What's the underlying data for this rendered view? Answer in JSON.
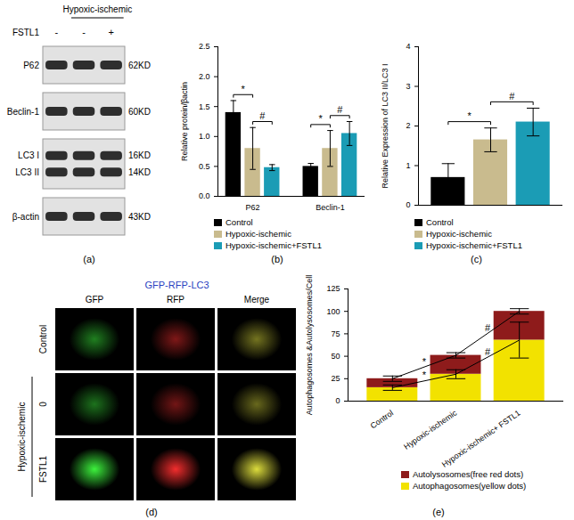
{
  "chart_data": [
    {
      "type": "blot",
      "caption": "(a)",
      "group_label": "Hypoxic-ischemic",
      "treatment": "FSTL1",
      "lanes": [
        "-",
        "-",
        "+"
      ],
      "bands": [
        {
          "names": [
            "P62"
          ],
          "size_labels": [
            "62KD"
          ]
        },
        {
          "names": [
            "Beclin-1"
          ],
          "size_labels": [
            "60KD"
          ]
        },
        {
          "names": [
            "LC3 I",
            "LC3 II"
          ],
          "size_labels": [
            "16KD",
            "14KD"
          ]
        },
        {
          "names": [
            "β-actin"
          ],
          "size_labels": [
            "43KD"
          ]
        }
      ]
    },
    {
      "type": "bar",
      "caption": "(b)",
      "y_label": "Relative protein/βactin",
      "categories": [
        "P62",
        "Beclin-1"
      ],
      "series": [
        {
          "name": "Control",
          "color": "#000000",
          "values": [
            1.4,
            0.5
          ],
          "errors": [
            0.2,
            0.05
          ]
        },
        {
          "name": "Hypoxic-ischemic",
          "color": "#c9bb8e",
          "values": [
            0.8,
            0.8
          ],
          "errors": [
            0.35,
            0.3
          ]
        },
        {
          "name": "Hypoxic-ischemic+FSTL1",
          "color": "#1b9cb5",
          "values": [
            0.48,
            1.05
          ],
          "errors": [
            0.05,
            0.2
          ]
        }
      ],
      "ylim": [
        0,
        2.5
      ],
      "yticks": [
        {
          "value": 0,
          "label": "0.0"
        },
        {
          "value": 0.5,
          "label": "0.5"
        },
        {
          "value": 1,
          "label": "1.0"
        },
        {
          "value": 1.5,
          "label": "1.5"
        },
        {
          "value": 2,
          "label": "2.0"
        },
        {
          "value": 2.5,
          "label": "2.5"
        }
      ],
      "legend": "bottom",
      "annotations": [
        {
          "text": "*",
          "category": "P62",
          "between": [
            "Control",
            "Hypoxic-ischemic"
          ]
        },
        {
          "text": "#",
          "category": "P62",
          "between": [
            "Hypoxic-ischemic",
            "Hypoxic-ischemic+FSTL1"
          ]
        },
        {
          "text": "*",
          "category": "Beclin-1",
          "between": [
            "Control",
            "Hypoxic-ischemic"
          ]
        },
        {
          "text": "#",
          "category": "Beclin-1",
          "between": [
            "Hypoxic-ischemic",
            "Hypoxic-ischemic+FSTL1"
          ]
        }
      ]
    },
    {
      "type": "bar",
      "caption": "(c)",
      "y_label": "Relative Expression of LC3 II/LC3 I",
      "categories": [
        "Control",
        "Hypoxic-ischemic",
        "Hypoxic-ischemic+FSTL1"
      ],
      "values": [
        0.7,
        1.65,
        2.1
      ],
      "errors": [
        0.35,
        0.3,
        0.35
      ],
      "colors": [
        "#000000",
        "#c9bb8e",
        "#1b9cb5"
      ],
      "ylim": [
        0,
        4
      ],
      "yticks": [
        0,
        1,
        2,
        3,
        4
      ],
      "legend": "bottom",
      "tick_labels": "y",
      "annotations": [
        {
          "text": "*",
          "between": [
            "Control",
            "Hypoxic-ischemic"
          ]
        },
        {
          "text": "#",
          "between": [
            "Hypoxic-ischemic",
            "Hypoxic-ischemic+FSTL1"
          ]
        }
      ]
    },
    {
      "type": "micrograph",
      "caption": "(d)",
      "title": "GFP-RFP-LC3",
      "columns": [
        "GFP",
        "RFP",
        "Merge"
      ],
      "rows": [
        "Control",
        "0",
        "FSTL1"
      ],
      "group_label": "Hypoxic-ischemic"
    },
    {
      "type": "bar",
      "caption": "(e)",
      "stacked": true,
      "y_label": "Autophagosomes &Autolysosomes/Cell",
      "categories": [
        "Control",
        "Hypoxic-ischemic",
        "Hypoxic-ischemic+ FSTL1"
      ],
      "series": [
        {
          "name": "Autophagosomes(yellow dots)",
          "color": "#f2e200",
          "values": [
            15,
            30,
            68
          ],
          "errors": [
            3,
            5,
            20
          ]
        },
        {
          "name": "Autolysosomes(free red dots)",
          "color": "#8e1b1b",
          "values": [
            10,
            21,
            32
          ],
          "errors": [
            3,
            3,
            3
          ]
        }
      ],
      "ylim": [
        0,
        125
      ],
      "yticks": [
        0,
        25,
        50,
        75,
        100,
        125
      ],
      "legend": "bottom",
      "annotations": [
        {
          "text": "*",
          "series": "Autolysosomes(free red dots)",
          "between": [
            "Control",
            "Hypoxic-ischemic"
          ]
        },
        {
          "text": "*",
          "series": "Autophagosomes(yellow dots)",
          "between": [
            "Control",
            "Hypoxic-ischemic"
          ]
        },
        {
          "text": "#",
          "series": "Autolysosomes(free red dots)",
          "between": [
            "Hypoxic-ischemic",
            "Hypoxic-ischemic+ FSTL1"
          ]
        },
        {
          "text": "#",
          "series": "Autophagosomes(yellow dots)",
          "between": [
            "Hypoxic-ischemic",
            "Hypoxic-ischemic+ FSTL1"
          ]
        }
      ]
    }
  ]
}
